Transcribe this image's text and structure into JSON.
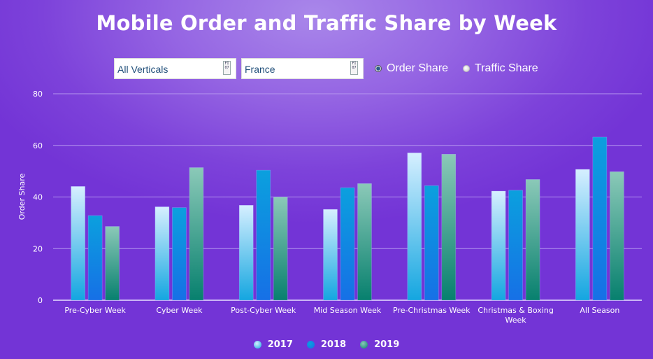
{
  "title": "Mobile Order and Traffic Share by Week",
  "filters": {
    "vertical": {
      "value": "All Verticals",
      "icon": "dropdown-icon",
      "icon_text": "FI 07"
    },
    "country": {
      "value": "France",
      "icon": "dropdown-icon",
      "icon_text": "FI 07"
    }
  },
  "metric_toggle": {
    "options": [
      {
        "label": "Order Share",
        "selected": true
      },
      {
        "label": "Traffic Share",
        "selected": false
      }
    ]
  },
  "colors": {
    "s2017_top": "#d6efff",
    "s2017_bottom": "#14a6e0",
    "s2018_top": "#0ba0de",
    "s2018_bottom": "#1670e6",
    "s2019_top": "#8bc9b8",
    "s2019_bottom": "#07806e",
    "grid": "#b596ef",
    "axis": "#e8e0ff"
  },
  "chart_data": {
    "type": "bar",
    "title": "Mobile Order and Traffic Share by Week",
    "xlabel": "",
    "ylabel": "Order Share",
    "ylim": [
      0,
      80
    ],
    "yticks": [
      "0",
      "20",
      "40",
      "60",
      "80"
    ],
    "grid": true,
    "legend_position": "bottom",
    "categories": [
      "Pre-Cyber Week",
      "Cyber Week",
      "Post-Cyber Week",
      "Mid Season Week",
      "Pre-Christmas Week",
      "Christmas & Boxing Week",
      "All Season"
    ],
    "category_lines": [
      [
        "Pre-Cyber Week"
      ],
      [
        "Cyber Week"
      ],
      [
        "Post-Cyber Week"
      ],
      [
        "Mid Season Week"
      ],
      [
        "Pre-Christmas Week"
      ],
      [
        "Christmas & Boxing",
        "Week"
      ],
      [
        "All Season"
      ]
    ],
    "series": [
      {
        "name": "2017",
        "values": [
          44.1,
          36.2,
          36.8,
          35.2,
          57.1,
          42.3,
          50.7
        ]
      },
      {
        "name": "2018",
        "values": [
          32.8,
          35.9,
          50.4,
          43.6,
          44.4,
          42.6,
          63.2
        ]
      },
      {
        "name": "2019",
        "values": [
          28.6,
          51.4,
          40.0,
          45.2,
          56.6,
          46.8,
          49.8
        ]
      }
    ]
  }
}
